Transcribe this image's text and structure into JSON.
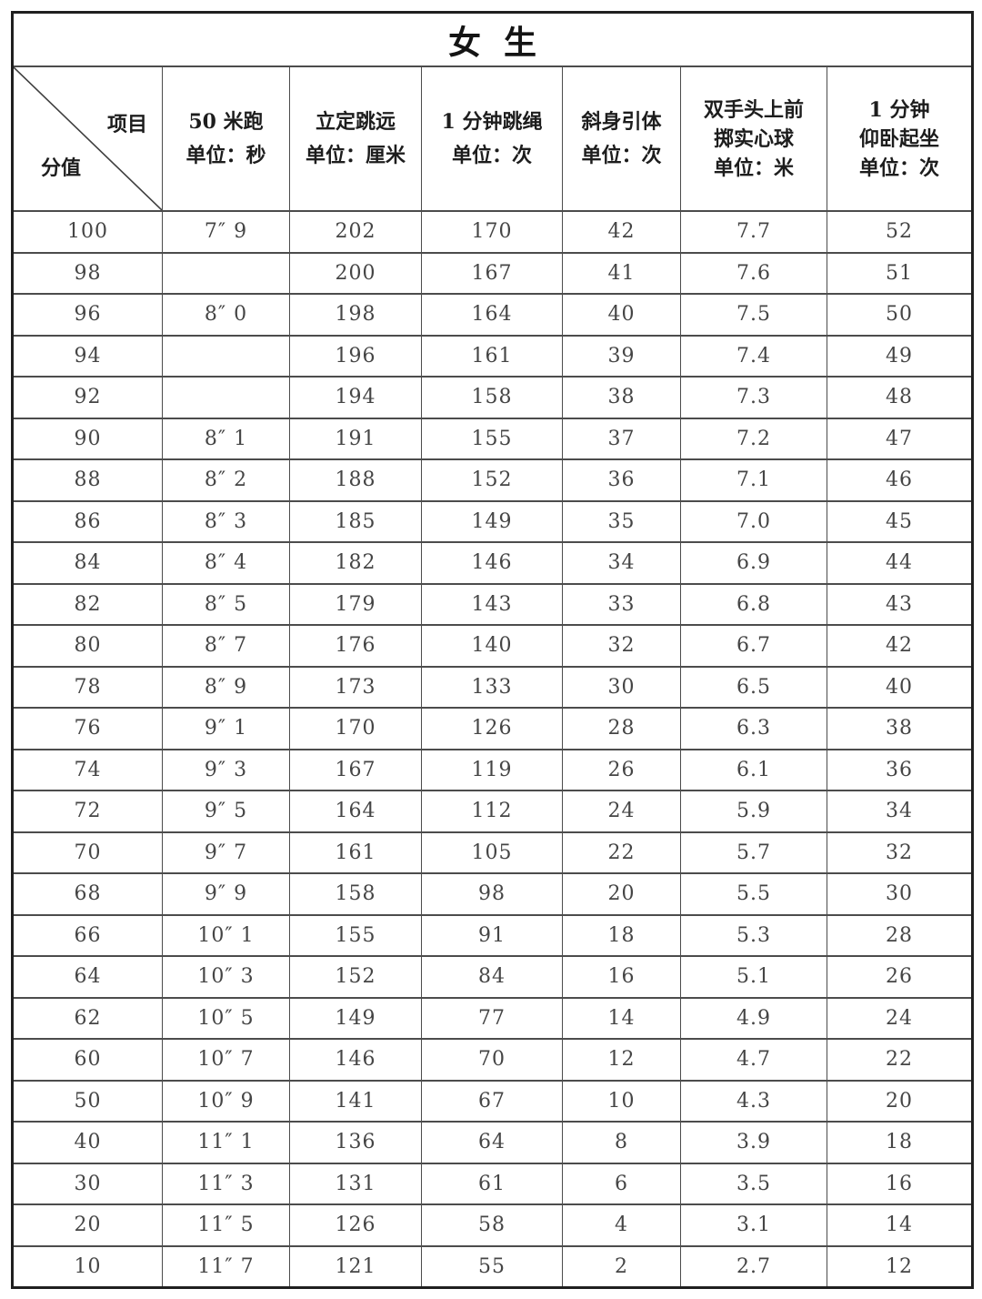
{
  "title": "女  生",
  "colors": {
    "ink": "#1d1d1d",
    "body_text": "#454545",
    "grid_line": "#4c4c4c",
    "background": "#ffffff"
  },
  "header": {
    "corner": {
      "item_label": "项目",
      "score_label": "分值"
    },
    "columns": [
      {
        "lines": [
          "50 米跑",
          "单位：秒"
        ]
      },
      {
        "lines": [
          "立定跳远",
          "单位：厘米"
        ]
      },
      {
        "lines": [
          "1 分钟跳绳",
          "单位：次"
        ]
      },
      {
        "lines": [
          "斜身引体",
          "单位：次"
        ]
      },
      {
        "lines": [
          "双手头上前",
          "掷实心球",
          "单位：米"
        ]
      },
      {
        "lines": [
          "1 分钟",
          "仰卧起坐",
          "单位：次"
        ]
      }
    ]
  },
  "rows": [
    [
      "100",
      "7″ 9",
      "202",
      "170",
      "42",
      "7.7",
      "52"
    ],
    [
      "98",
      "",
      "200",
      "167",
      "41",
      "7.6",
      "51"
    ],
    [
      "96",
      "8″ 0",
      "198",
      "164",
      "40",
      "7.5",
      "50"
    ],
    [
      "94",
      "",
      "196",
      "161",
      "39",
      "7.4",
      "49"
    ],
    [
      "92",
      "",
      "194",
      "158",
      "38",
      "7.3",
      "48"
    ],
    [
      "90",
      "8″ 1",
      "191",
      "155",
      "37",
      "7.2",
      "47"
    ],
    [
      "88",
      "8″ 2",
      "188",
      "152",
      "36",
      "7.1",
      "46"
    ],
    [
      "86",
      "8″ 3",
      "185",
      "149",
      "35",
      "7.0",
      "45"
    ],
    [
      "84",
      "8″ 4",
      "182",
      "146",
      "34",
      "6.9",
      "44"
    ],
    [
      "82",
      "8″ 5",
      "179",
      "143",
      "33",
      "6.8",
      "43"
    ],
    [
      "80",
      "8″ 7",
      "176",
      "140",
      "32",
      "6.7",
      "42"
    ],
    [
      "78",
      "8″ 9",
      "173",
      "133",
      "30",
      "6.5",
      "40"
    ],
    [
      "76",
      "9″ 1",
      "170",
      "126",
      "28",
      "6.3",
      "38"
    ],
    [
      "74",
      "9″ 3",
      "167",
      "119",
      "26",
      "6.1",
      "36"
    ],
    [
      "72",
      "9″ 5",
      "164",
      "112",
      "24",
      "5.9",
      "34"
    ],
    [
      "70",
      "9″ 7",
      "161",
      "105",
      "22",
      "5.7",
      "32"
    ],
    [
      "68",
      "9″ 9",
      "158",
      "98",
      "20",
      "5.5",
      "30"
    ],
    [
      "66",
      "10″ 1",
      "155",
      "91",
      "18",
      "5.3",
      "28"
    ],
    [
      "64",
      "10″ 3",
      "152",
      "84",
      "16",
      "5.1",
      "26"
    ],
    [
      "62",
      "10″ 5",
      "149",
      "77",
      "14",
      "4.9",
      "24"
    ],
    [
      "60",
      "10″ 7",
      "146",
      "70",
      "12",
      "4.7",
      "22"
    ],
    [
      "50",
      "10″ 9",
      "141",
      "67",
      "10",
      "4.3",
      "20"
    ],
    [
      "40",
      "11″ 1",
      "136",
      "64",
      "8",
      "3.9",
      "18"
    ],
    [
      "30",
      "11″ 3",
      "131",
      "61",
      "6",
      "3.5",
      "16"
    ],
    [
      "20",
      "11″ 5",
      "126",
      "58",
      "4",
      "3.1",
      "14"
    ],
    [
      "10",
      "11″ 7",
      "121",
      "55",
      "2",
      "2.7",
      "12"
    ]
  ]
}
